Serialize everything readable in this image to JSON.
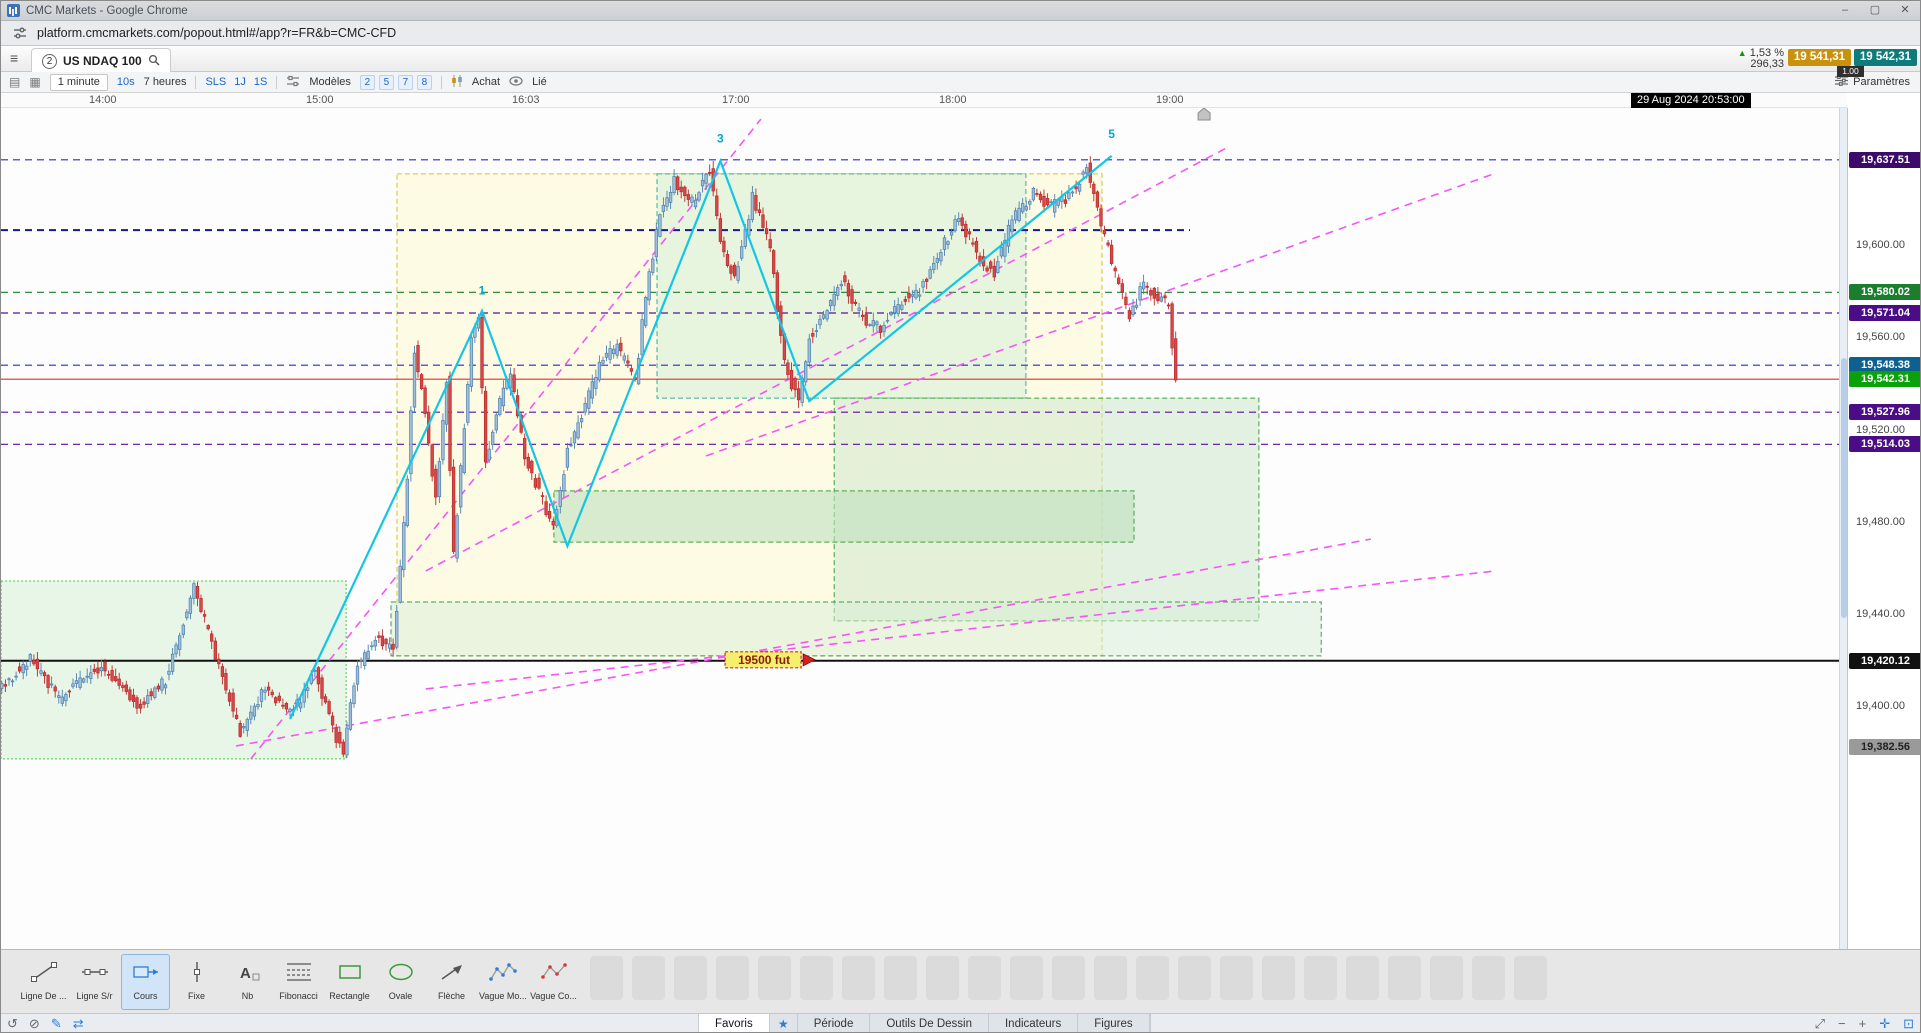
{
  "window": {
    "title": "CMC Markets - Google Chrome",
    "url": "platform.cmcmarkets.com/popout.html#/app?r=FR&b=CMC-CFD"
  },
  "icons": {
    "menu": "≡",
    "news": "▤",
    "layout_grid": "▦",
    "up_triangle": "▲",
    "star": "★",
    "undo": "↺",
    "block": "⊘",
    "pencil": "✎",
    "link_arrows": "⇄",
    "pan": "⤢",
    "minus": "−",
    "plus": "+",
    "crosshair": "✛",
    "autofit": "⊡",
    "min": "–",
    "max": "▢",
    "close": "✕"
  },
  "header": {
    "tab_badge": "2",
    "instrument": "US NDAQ 100",
    "change_pct": "1,53 %",
    "change_abs": "296,33",
    "sell_price": "19 541,31",
    "buy_price": "19 542,31",
    "spread": "1.00",
    "sell_color": "#c8920f",
    "buy_color": "#0f7c7c"
  },
  "toolbar": {
    "timeframe_selected": "1 minute",
    "timeframe_fast": "10s",
    "duration": "7 heures",
    "scale_buttons": [
      "SLS",
      "1J",
      "1S"
    ],
    "models_label": "Modèles",
    "model_counts": [
      "2",
      "5",
      "7",
      "8"
    ],
    "achat_label": "Achat",
    "lie_label": "Lié",
    "parametres_label": "Paramètres"
  },
  "time_axis": {
    "labels": [
      {
        "text": "14:00",
        "m": 0
      },
      {
        "text": "15:00",
        "m": 61
      },
      {
        "text": "16:03",
        "m": 119
      },
      {
        "text": "17:00",
        "m": 178
      },
      {
        "text": "18:00",
        "m": 239
      },
      {
        "text": "19:00",
        "m": 300
      }
    ],
    "cursor_time": "29 Aug 2024 20:53:00"
  },
  "price_scale": {
    "ticks": [
      19600,
      19560,
      19520,
      19480,
      19440,
      19400
    ],
    "tick_format": [
      "19,600.00",
      "19,560.00",
      "19,520.00",
      "19,480.00",
      "19,440.00",
      "19,400.00"
    ],
    "badges": [
      {
        "text": "19,637.51",
        "price": 19637.51,
        "bg": "#3d0a6b",
        "fg": "#ffffff"
      },
      {
        "text": "19,580.02",
        "price": 19580.02,
        "bg": "#1b7e2c",
        "fg": "#ffffff"
      },
      {
        "text": "19,571.04",
        "price": 19571.04,
        "bg": "#4a0d86",
        "fg": "#ffffff"
      },
      {
        "text": "19,548.38",
        "price": 19548.38,
        "bg": "#0e608f",
        "fg": "#ffffff"
      },
      {
        "text": "19,542.31",
        "price": 19542.31,
        "bg": "#0aa10a",
        "fg": "#ffffff"
      },
      {
        "text": "19,527.96",
        "price": 19527.96,
        "bg": "#4a0d86",
        "fg": "#ffffff"
      },
      {
        "text": "19,514.03",
        "price": 19514.03,
        "bg": "#4a0d86",
        "fg": "#ffffff"
      },
      {
        "text": "19,420.12",
        "price": 19420.12,
        "bg": "#111111",
        "fg": "#ffffff"
      },
      {
        "text": "19,382.56",
        "price": 19382.56,
        "bg": "#9a9a9a",
        "fg": "#222222"
      }
    ]
  },
  "chart_data": {
    "type": "candlestick",
    "instrument": "US NDAQ 100",
    "interval": "1 minute",
    "price_range": [
      19295,
      19660
    ],
    "time_range_minutes": [
      -29,
      302
    ],
    "current_price": 19542.31,
    "candle_up_stroke": "#4d7eb0",
    "candle_up_fill": "#9fc0da",
    "candle_down_stroke": "#b82a2a",
    "candle_down_fill": "#d84848",
    "price_path": [
      [
        -29,
        19408
      ],
      [
        -20,
        19421
      ],
      [
        -12,
        19404
      ],
      [
        0,
        19418
      ],
      [
        10,
        19400
      ],
      [
        18,
        19412
      ],
      [
        26,
        19452
      ],
      [
        31,
        19428
      ],
      [
        39,
        19389
      ],
      [
        46,
        19408
      ],
      [
        54,
        19398
      ],
      [
        60,
        19417
      ],
      [
        65,
        19390
      ],
      [
        68,
        19381
      ],
      [
        72,
        19418
      ],
      [
        77,
        19430
      ],
      [
        82,
        19424
      ],
      [
        86,
        19500
      ],
      [
        88,
        19556
      ],
      [
        91,
        19528
      ],
      [
        94,
        19489
      ],
      [
        97,
        19542
      ],
      [
        99,
        19466
      ],
      [
        104,
        19560
      ],
      [
        106,
        19570
      ],
      [
        108,
        19506
      ],
      [
        111,
        19529
      ],
      [
        115,
        19544
      ],
      [
        119,
        19509
      ],
      [
        123,
        19494
      ],
      [
        127,
        19477
      ],
      [
        131,
        19511
      ],
      [
        135,
        19526
      ],
      [
        140,
        19549
      ],
      [
        145,
        19556
      ],
      [
        150,
        19541
      ],
      [
        153,
        19579
      ],
      [
        157,
        19614
      ],
      [
        161,
        19629
      ],
      [
        166,
        19619
      ],
      [
        171,
        19634
      ],
      [
        174,
        19601
      ],
      [
        178,
        19586
      ],
      [
        183,
        19621
      ],
      [
        188,
        19599
      ],
      [
        192,
        19549
      ],
      [
        196,
        19532
      ],
      [
        199,
        19561
      ],
      [
        204,
        19572
      ],
      [
        208,
        19585
      ],
      [
        214,
        19569
      ],
      [
        219,
        19564
      ],
      [
        225,
        19577
      ],
      [
        230,
        19581
      ],
      [
        236,
        19599
      ],
      [
        241,
        19612
      ],
      [
        247,
        19594
      ],
      [
        251,
        19589
      ],
      [
        256,
        19611
      ],
      [
        262,
        19624
      ],
      [
        267,
        19617
      ],
      [
        272,
        19621
      ],
      [
        277,
        19634
      ],
      [
        281,
        19609
      ],
      [
        285,
        19587
      ],
      [
        289,
        19569
      ],
      [
        293,
        19584
      ],
      [
        297,
        19578
      ],
      [
        300,
        19574
      ],
      [
        302,
        19542
      ]
    ],
    "overlays": {
      "horizontal_lines": [
        {
          "price": 19637.51,
          "color": "#2a2ad0",
          "style": "dashed"
        },
        {
          "price": 19607.0,
          "color": "#1a1a8c",
          "style": "dashed",
          "width": 2,
          "m_end": 305
        },
        {
          "price": 19580.02,
          "color": "#1b7e2c",
          "style": "dashed"
        },
        {
          "price": 19571.04,
          "color": "#5a10a0",
          "style": "dashed"
        },
        {
          "price": 19548.38,
          "color": "#2a2ad0",
          "style": "dashed"
        },
        {
          "price": 19542.31,
          "color": "#e03030",
          "style": "solid"
        },
        {
          "price": 19527.96,
          "color": "#5a10a0",
          "style": "dashed"
        },
        {
          "price": 19514.03,
          "color": "#5a10a0",
          "style": "dashed"
        },
        {
          "price": 19420.12,
          "color": "#111111",
          "style": "solid",
          "width": 2
        }
      ],
      "trendline_color": "#f556f5",
      "trendlines": [
        {
          "m1": 41.0,
          "p1": 19377.5,
          "m2": 184.4,
          "p2": 19655.2
        },
        {
          "m1": 90.2,
          "p1": 19459.1,
          "m2": 315.2,
          "p2": 19642.6
        },
        {
          "m1": 169.0,
          "p1": 19509.0,
          "m2": 391.1,
          "p2": 19631.8
        },
        {
          "m1": 36.8,
          "p1": 19383.1,
          "m2": 355.9,
          "p2": 19472.9
        },
        {
          "m1": 90.2,
          "p1": 19407.9,
          "m2": 391.1,
          "p2": 19459.1
        }
      ],
      "wave_color": "#14c6e6",
      "wave": [
        [
          52,
          19394.8
        ],
        [
          106,
          19571.9
        ],
        [
          130,
          19469.9
        ],
        [
          173,
          19637.0
        ],
        [
          198,
          19532.8
        ],
        [
          283,
          19639.2
        ]
      ],
      "wave_labels": [
        {
          "text": "1",
          "m": 106,
          "p": 19579
        },
        {
          "text": "3",
          "m": 173,
          "p": 19645
        },
        {
          "text": "5",
          "m": 283,
          "p": 19647
        }
      ],
      "zones": [
        {
          "m1": 82.1,
          "p1": 19631.4,
          "m2": 280.3,
          "p2": 19422.2,
          "fill": "rgba(255,250,205,0.50)",
          "border": "#d4c428",
          "style": "dashed"
        },
        {
          "m1": 155.2,
          "p1": 19631.4,
          "m2": 258.9,
          "p2": 19534.1,
          "fill": "rgba(205,238,215,0.45)",
          "border": "#30b0a0",
          "style": "dashed"
        },
        {
          "m1": 205.0,
          "p1": 19534.1,
          "m2": 324.4,
          "p2": 19437.4,
          "fill": "rgba(205,232,205,0.55)",
          "border": "#3f9f3f",
          "style": "dashed"
        },
        {
          "m1": 126.2,
          "p1": 19493.8,
          "m2": 289.3,
          "p2": 19471.6,
          "fill": "rgba(190,225,190,0.60)",
          "border": "#3f9f3f",
          "style": "dashed"
        },
        {
          "m1": 80.4,
          "p1": 19445.6,
          "m2": 341.9,
          "p2": 19422.2,
          "fill": "rgba(215,238,215,0.50)",
          "border": "#3f9f3f",
          "style": "dashed"
        },
        {
          "m1": -29.2,
          "p1": 19454.7,
          "m2": 67.8,
          "p2": 19377.5,
          "fill": "rgba(210,240,210,0.50)",
          "border": "#44cc44",
          "style": "dotted"
        }
      ],
      "annotation": {
        "text": "19500 fut",
        "m": 185.3,
        "p": 19420.5,
        "bg": "#f6ee6e",
        "border": "#cc3020",
        "fg": "#8a2000"
      },
      "time_marker_m": 309
    }
  },
  "tools": [
    {
      "label": "Ligne De ...",
      "icon": "trendline-icon"
    },
    {
      "label": "Ligne S/r",
      "icon": "sr-line-icon"
    },
    {
      "label": "Cours",
      "icon": "price-label-icon",
      "selected": true
    },
    {
      "label": "Fixe",
      "icon": "vertical-line-icon"
    },
    {
      "label": "Nb",
      "icon": "text-icon"
    },
    {
      "label": "Fibonacci",
      "icon": "fibonacci-icon"
    },
    {
      "label": "Rectangle",
      "icon": "rectangle-icon"
    },
    {
      "label": "Ovale",
      "icon": "ellipse-icon"
    },
    {
      "label": "Flèche",
      "icon": "arrow-icon"
    },
    {
      "label": "Vague Mo...",
      "icon": "wave-motive-icon"
    },
    {
      "label": "Vague Co...",
      "icon": "wave-corrective-icon"
    }
  ],
  "bottom_bar": {
    "tabs": [
      {
        "label": "Favoris",
        "selected": true
      },
      {
        "label": "Période"
      },
      {
        "label": "Outils De Dessin"
      },
      {
        "label": "Indicateurs"
      },
      {
        "label": "Figures"
      }
    ]
  }
}
